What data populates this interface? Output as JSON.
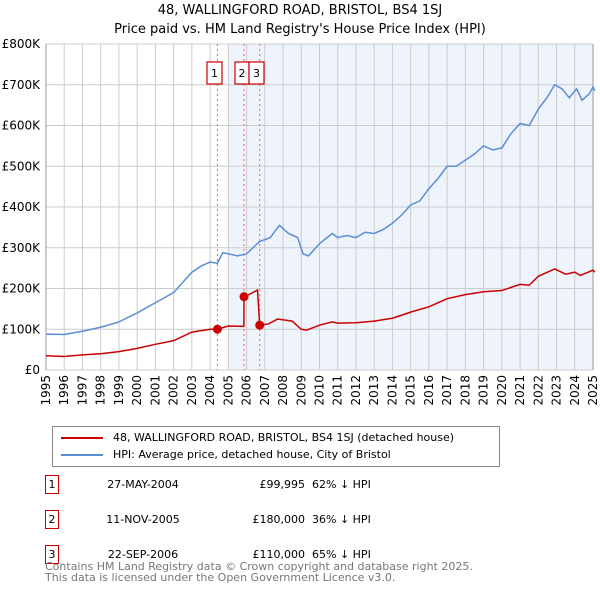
{
  "title": "48, WALLINGFORD ROAD, BRISTOL, BS4 1SJ",
  "subtitle": "Price paid vs. HM Land Registry's House Price Index (HPI)",
  "chart_data": {
    "type": "line",
    "xlim": [
      1995,
      2025.1
    ],
    "ylim": [
      0,
      800000
    ],
    "x_ticks": [
      "1995",
      "1996",
      "1997",
      "1998",
      "1999",
      "2000",
      "2001",
      "2002",
      "2003",
      "2004",
      "2005",
      "2006",
      "2007",
      "2008",
      "2009",
      "2010",
      "2011",
      "2012",
      "2013",
      "2014",
      "2015",
      "2016",
      "2017",
      "2018",
      "2019",
      "2020",
      "2021",
      "2022",
      "2023",
      "2024",
      "2025"
    ],
    "y_ticks": [
      {
        "v": 0,
        "label": "£0"
      },
      {
        "v": 100000,
        "label": "£100K"
      },
      {
        "v": 200000,
        "label": "£200K"
      },
      {
        "v": 300000,
        "label": "£300K"
      },
      {
        "v": 400000,
        "label": "£400K"
      },
      {
        "v": 500000,
        "label": "£500K"
      },
      {
        "v": 600000,
        "label": "£600K"
      },
      {
        "v": 700000,
        "label": "£700K"
      },
      {
        "v": 800000,
        "label": "£800K"
      }
    ],
    "grid": true,
    "shaded_range": [
      2005,
      2025.1
    ],
    "series": [
      {
        "name": "48, WALLINGFORD ROAD, BRISTOL, BS4 1SJ (detached house)",
        "color": "#cc0000",
        "points": [
          [
            1995,
            35
          ],
          [
            1996,
            33
          ],
          [
            1997,
            37
          ],
          [
            1998,
            40
          ],
          [
            1999,
            45
          ],
          [
            2000,
            53
          ],
          [
            2001,
            63
          ],
          [
            2002,
            72
          ],
          [
            2003,
            93
          ],
          [
            2004,
            100
          ],
          [
            2004.4,
            100
          ],
          [
            2005,
            108
          ],
          [
            2005.85,
            107
          ],
          [
            2005.86,
            180
          ],
          [
            2006,
            182
          ],
          [
            2006.6,
            196
          ],
          [
            2006.72,
            110
          ],
          [
            2007.2,
            113
          ],
          [
            2007.7,
            125
          ],
          [
            2008.5,
            120
          ],
          [
            2009,
            100
          ],
          [
            2009.3,
            98
          ],
          [
            2010,
            110
          ],
          [
            2010.7,
            118
          ],
          [
            2011,
            115
          ],
          [
            2012,
            116
          ],
          [
            2013,
            120
          ],
          [
            2014,
            127
          ],
          [
            2015,
            142
          ],
          [
            2016,
            155
          ],
          [
            2017,
            175
          ],
          [
            2018,
            185
          ],
          [
            2019,
            192
          ],
          [
            2020,
            195
          ],
          [
            2021,
            210
          ],
          [
            2021.5,
            208
          ],
          [
            2022,
            230
          ],
          [
            2022.9,
            248
          ],
          [
            2023.5,
            235
          ],
          [
            2024,
            240
          ],
          [
            2024.3,
            232
          ],
          [
            2025,
            245
          ],
          [
            2025.1,
            240
          ]
        ]
      },
      {
        "name": "HPI: Average price, detached house, City of Bristol",
        "color": "#5b8fd4",
        "points": [
          [
            1995,
            88
          ],
          [
            1996,
            87
          ],
          [
            1997,
            95
          ],
          [
            1998,
            105
          ],
          [
            1999,
            118
          ],
          [
            2000,
            140
          ],
          [
            2001,
            165
          ],
          [
            2002,
            190
          ],
          [
            2003,
            240
          ],
          [
            2003.5,
            255
          ],
          [
            2004,
            265
          ],
          [
            2004.4,
            262
          ],
          [
            2004.7,
            288
          ],
          [
            2005.5,
            280
          ],
          [
            2006,
            285
          ],
          [
            2006.7,
            315
          ],
          [
            2007.3,
            325
          ],
          [
            2007.8,
            355
          ],
          [
            2008.3,
            335
          ],
          [
            2008.8,
            325
          ],
          [
            2009.1,
            285
          ],
          [
            2009.4,
            280
          ],
          [
            2010,
            310
          ],
          [
            2010.7,
            335
          ],
          [
            2011,
            325
          ],
          [
            2011.5,
            330
          ],
          [
            2012,
            325
          ],
          [
            2012.5,
            338
          ],
          [
            2013,
            335
          ],
          [
            2013.5,
            345
          ],
          [
            2014,
            360
          ],
          [
            2014.5,
            380
          ],
          [
            2015,
            405
          ],
          [
            2015.5,
            415
          ],
          [
            2016,
            445
          ],
          [
            2016.5,
            470
          ],
          [
            2017,
            500
          ],
          [
            2017.5,
            500
          ],
          [
            2018,
            515
          ],
          [
            2018.5,
            530
          ],
          [
            2019,
            550
          ],
          [
            2019.5,
            540
          ],
          [
            2020,
            545
          ],
          [
            2020.5,
            580
          ],
          [
            2021,
            605
          ],
          [
            2021.5,
            600
          ],
          [
            2022,
            640
          ],
          [
            2022.5,
            670
          ],
          [
            2022.9,
            700
          ],
          [
            2023.3,
            690
          ],
          [
            2023.7,
            668
          ],
          [
            2024.1,
            690
          ],
          [
            2024.4,
            662
          ],
          [
            2024.8,
            678
          ],
          [
            2025,
            695
          ],
          [
            2025.1,
            685
          ]
        ]
      }
    ],
    "y_units": "thousands GBP",
    "sales": [
      {
        "n": "1",
        "x": 2004.4,
        "y": 99.995
      },
      {
        "n": "2",
        "x": 2005.86,
        "y": 180
      },
      {
        "n": "3",
        "x": 2006.72,
        "y": 110
      }
    ]
  },
  "legend": [
    {
      "label": "48, WALLINGFORD ROAD, BRISTOL, BS4 1SJ (detached house)",
      "color": "#cc0000"
    },
    {
      "label": "HPI: Average price, detached house, City of Bristol",
      "color": "#5b8fd4"
    }
  ],
  "transactions": [
    {
      "n": "1",
      "date": "27-MAY-2004",
      "price": "£99,995",
      "hpi": "62% ↓ HPI"
    },
    {
      "n": "2",
      "date": "11-NOV-2005",
      "price": "£180,000",
      "hpi": "36% ↓ HPI"
    },
    {
      "n": "3",
      "date": "22-SEP-2006",
      "price": "£110,000",
      "hpi": "65% ↓ HPI"
    }
  ],
  "footer": [
    "Contains HM Land Registry data © Crown copyright and database right 2025.",
    "This data is licensed under the Open Government Licence v3.0."
  ]
}
